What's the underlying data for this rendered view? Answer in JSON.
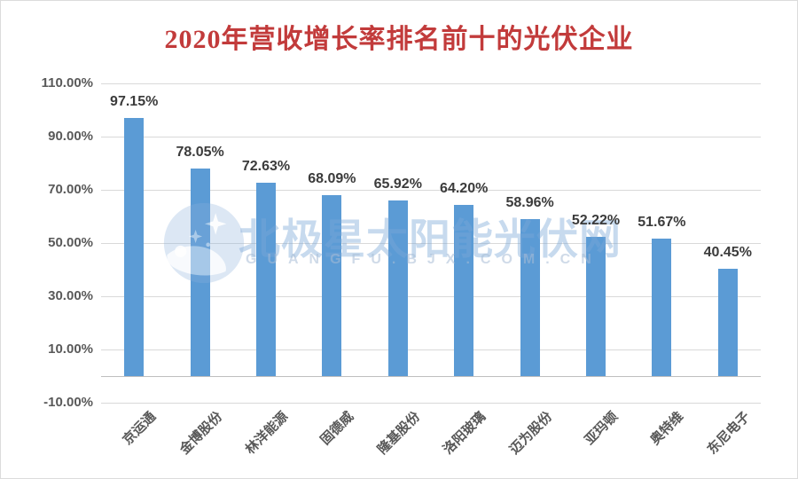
{
  "colors": {
    "title_red": "#c23b3b",
    "bar_blue": "#5b9bd5",
    "axis_text": "#595959",
    "value_label_text": "#3b3b3b",
    "gridline": "#d9d9d9",
    "zero_line": "#bfbfbf",
    "watermark_blue": "#7ca9d8"
  },
  "watermark": {
    "logo": "polar-star-logo",
    "text_cn": "北极星太阳能光伏网",
    "text_en": "GUANGFU.BJX.COM.CN"
  },
  "chart_data": {
    "type": "bar",
    "title": "2020年营收增长率排名前十的光伏企业",
    "categories": [
      "京运通",
      "金博股份",
      "林洋能源",
      "固德威",
      "隆基股份",
      "洛阳玻璃",
      "迈为股份",
      "亚玛顿",
      "奥特维",
      "东尼电子"
    ],
    "values": [
      97.15,
      78.05,
      72.63,
      68.09,
      65.92,
      64.2,
      58.96,
      52.22,
      51.67,
      40.45
    ],
    "value_labels": [
      "97.15%",
      "78.05%",
      "72.63%",
      "68.09%",
      "65.92%",
      "64.20%",
      "58.96%",
      "52.22%",
      "51.67%",
      "40.45%"
    ],
    "xlabel": "",
    "ylabel": "",
    "ylim": [
      -10,
      110
    ],
    "y_ticks": [
      {
        "value": 110,
        "label": "110.00%"
      },
      {
        "value": 90,
        "label": "90.00%"
      },
      {
        "value": 70,
        "label": "70.00%"
      },
      {
        "value": 50,
        "label": "50.00%"
      },
      {
        "value": 30,
        "label": "30.00%"
      },
      {
        "value": 10,
        "label": "10.00%"
      },
      {
        "value": -10,
        "label": "-10.00%"
      }
    ],
    "grid": true,
    "legend": false,
    "bar_color": "#5b9bd5"
  }
}
